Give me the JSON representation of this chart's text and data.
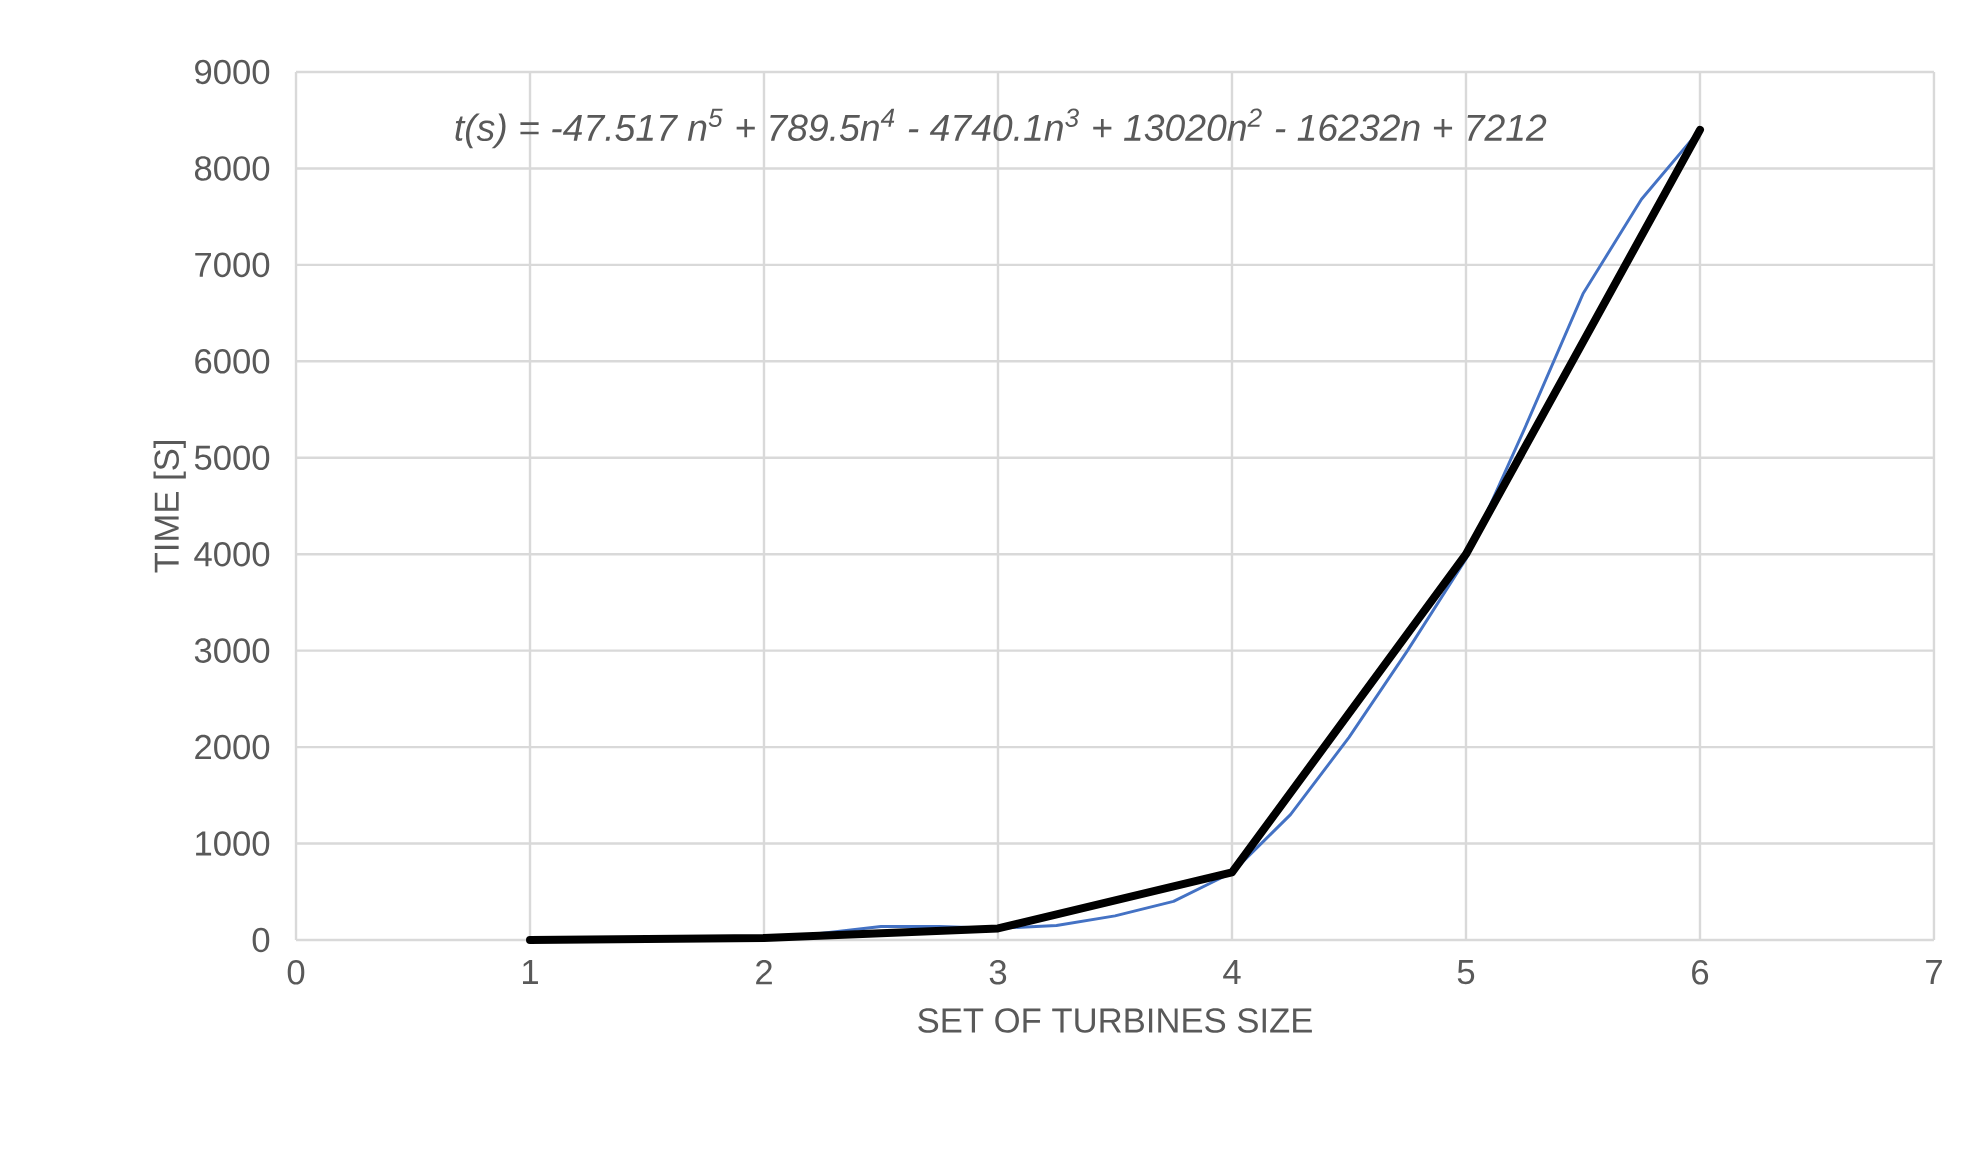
{
  "chart_data": {
    "type": "line",
    "xlabel": "SET OF TURBINES SIZE",
    "ylabel": "TIME [S]",
    "annotations": [
      "t(s) = -47.517 n$^{5}$ + 789.5n$^{4}$ - 4740.1n$^{3}$ + 13020n$^{2}$ - 16232n + 7212"
    ],
    "xlim": [
      0,
      7
    ],
    "xticks": [
      0,
      1,
      2,
      3,
      4,
      5,
      6,
      7
    ],
    "ylim": [
      0,
      9000
    ],
    "yticks": [
      0,
      1000,
      2000,
      3000,
      4000,
      5000,
      6000,
      7000,
      8000,
      9000
    ],
    "grid": true,
    "series": [
      {
        "color": "#000000",
        "x": [
          1,
          2,
          3,
          4,
          5,
          6
        ],
        "values": [
          0,
          20,
          120,
          700,
          4000,
          8400
        ]
      },
      {
        "color": "#4472c4",
        "x": [
          2,
          2.25,
          2.5,
          2.75,
          3,
          3.25,
          3.5,
          3.75,
          4,
          4.25,
          4.5,
          4.75,
          5,
          5.25,
          5.5,
          5.75,
          6
        ],
        "values": [
          10,
          70,
          140,
          140,
          120,
          150,
          250,
          400,
          700,
          1300,
          2100,
          3000,
          3950,
          5300,
          6700,
          7680,
          8400
        ]
      }
    ]
  }
}
